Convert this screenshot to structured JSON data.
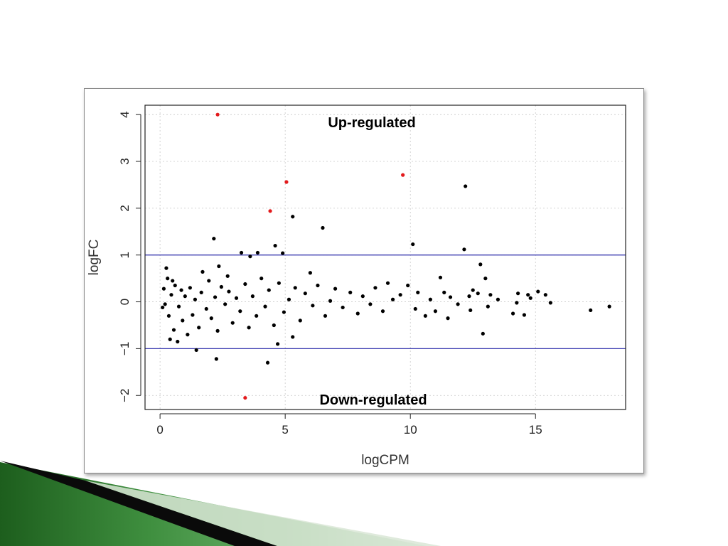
{
  "chart_data": {
    "type": "scatter",
    "title": "",
    "xlabel": "logCPM",
    "ylabel": "logFC",
    "xlim": [
      -0.6,
      18.6
    ],
    "ylim": [
      -2.3,
      4.2
    ],
    "xticks": [
      0,
      5,
      10,
      15
    ],
    "yticks": [
      -2,
      -1,
      0,
      1,
      2,
      3,
      4
    ],
    "grid": true,
    "legend": "none",
    "threshold_lines": [
      1,
      -1
    ],
    "threshold_color": "#3a3ab0",
    "annotations": {
      "top": "Up-regulated",
      "bottom": "Down-regulated"
    },
    "series": [
      {
        "role": "significant",
        "color": "#e31a1c",
        "points": [
          [
            2.3,
            4.0
          ],
          [
            4.4,
            1.94
          ],
          [
            5.05,
            2.56
          ],
          [
            9.7,
            2.71
          ],
          [
            3.4,
            -2.05
          ]
        ]
      },
      {
        "role": "not-significant",
        "color": "#000000",
        "points": [
          [
            12.2,
            2.47
          ],
          [
            5.3,
            1.82
          ],
          [
            6.5,
            1.58
          ],
          [
            2.15,
            1.35
          ],
          [
            10.1,
            1.23
          ],
          [
            4.6,
            1.2
          ],
          [
            12.15,
            1.12
          ],
          [
            3.25,
            1.05
          ],
          [
            4.9,
            1.04
          ],
          [
            3.6,
            0.97
          ],
          [
            12.8,
            0.8
          ],
          [
            2.35,
            0.76
          ],
          [
            0.25,
            0.72
          ],
          [
            1.7,
            0.64
          ],
          [
            6.0,
            0.62
          ],
          [
            3.9,
            1.05
          ],
          [
            0.5,
            0.45
          ],
          [
            11.2,
            0.52
          ],
          [
            13.0,
            0.5
          ],
          [
            2.7,
            0.55
          ],
          [
            12.9,
            -0.68
          ],
          [
            5.3,
            -0.75
          ],
          [
            4.7,
            -0.9
          ],
          [
            1.45,
            -1.03
          ],
          [
            2.25,
            -1.22
          ],
          [
            4.3,
            -1.3
          ],
          [
            0.4,
            -0.8
          ],
          [
            0.7,
            -0.85
          ],
          [
            17.2,
            -0.18
          ],
          [
            17.95,
            -0.1
          ],
          [
            15.6,
            -0.02
          ],
          [
            15.4,
            0.15
          ],
          [
            15.1,
            0.22
          ],
          [
            14.8,
            0.08
          ],
          [
            14.55,
            -0.28
          ],
          [
            14.3,
            0.18
          ],
          [
            14.25,
            -0.02
          ],
          [
            14.1,
            -0.25
          ],
          [
            14.7,
            0.15
          ],
          [
            13.5,
            0.05
          ],
          [
            13.2,
            0.15
          ],
          [
            13.1,
            -0.1
          ],
          [
            12.5,
            0.25
          ],
          [
            12.7,
            0.18
          ],
          [
            12.4,
            -0.18
          ],
          [
            12.35,
            0.12
          ],
          [
            11.9,
            -0.05
          ],
          [
            11.6,
            0.1
          ],
          [
            11.5,
            -0.35
          ],
          [
            11.35,
            0.2
          ],
          [
            11.0,
            -0.2
          ],
          [
            10.8,
            0.05
          ],
          [
            10.6,
            -0.3
          ],
          [
            10.3,
            0.2
          ],
          [
            10.2,
            -0.15
          ],
          [
            9.9,
            0.35
          ],
          [
            9.6,
            0.15
          ],
          [
            9.3,
            0.05
          ],
          [
            9.1,
            0.4
          ],
          [
            8.9,
            -0.2
          ],
          [
            8.6,
            0.3
          ],
          [
            8.4,
            -0.05
          ],
          [
            8.1,
            0.12
          ],
          [
            7.9,
            -0.25
          ],
          [
            7.6,
            0.2
          ],
          [
            7.3,
            -0.12
          ],
          [
            7.0,
            0.28
          ],
          [
            6.8,
            0.02
          ],
          [
            6.6,
            -0.3
          ],
          [
            6.3,
            0.35
          ],
          [
            6.1,
            -0.08
          ],
          [
            5.8,
            0.18
          ],
          [
            5.6,
            -0.4
          ],
          [
            5.4,
            0.3
          ],
          [
            5.15,
            0.05
          ],
          [
            4.95,
            -0.22
          ],
          [
            4.75,
            0.4
          ],
          [
            4.55,
            -0.5
          ],
          [
            4.35,
            0.25
          ],
          [
            4.2,
            -0.1
          ],
          [
            4.05,
            0.5
          ],
          [
            3.85,
            -0.3
          ],
          [
            3.7,
            0.12
          ],
          [
            3.55,
            -0.55
          ],
          [
            3.4,
            0.38
          ],
          [
            3.2,
            -0.2
          ],
          [
            3.05,
            0.08
          ],
          [
            2.9,
            -0.45
          ],
          [
            2.75,
            0.22
          ],
          [
            2.6,
            -0.05
          ],
          [
            2.45,
            0.32
          ],
          [
            2.3,
            -0.62
          ],
          [
            2.2,
            0.1
          ],
          [
            2.05,
            -0.35
          ],
          [
            1.95,
            0.45
          ],
          [
            1.85,
            -0.15
          ],
          [
            1.65,
            0.2
          ],
          [
            1.55,
            -0.55
          ],
          [
            1.4,
            0.05
          ],
          [
            1.3,
            -0.28
          ],
          [
            1.2,
            0.3
          ],
          [
            1.1,
            -0.7
          ],
          [
            1.0,
            0.12
          ],
          [
            0.9,
            -0.4
          ],
          [
            0.85,
            0.25
          ],
          [
            0.75,
            -0.1
          ],
          [
            0.6,
            0.35
          ],
          [
            0.55,
            -0.6
          ],
          [
            0.45,
            0.15
          ],
          [
            0.35,
            -0.3
          ],
          [
            0.3,
            0.5
          ],
          [
            0.2,
            -0.05
          ],
          [
            0.15,
            0.28
          ],
          [
            0.1,
            -0.12
          ]
        ]
      }
    ]
  }
}
